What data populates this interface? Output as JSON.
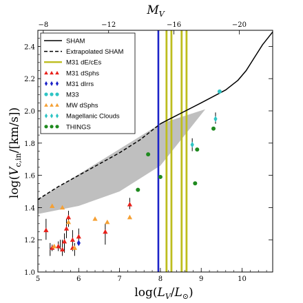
{
  "chart_data": {
    "type": "scatter",
    "xlabel": "log(L_V/L_⊙)",
    "ylabel": "log(V_c,in/[km/s])",
    "top_xlabel": "M_V",
    "xlim": [
      5.0,
      10.75
    ],
    "ylim": [
      1.0,
      2.5
    ],
    "x_ticks": [
      5,
      6,
      7,
      8,
      9,
      10
    ],
    "y_ticks": [
      1.0,
      1.2,
      1.4,
      1.6,
      1.8,
      2.0,
      2.2,
      2.4
    ],
    "top_ticks": [
      -8,
      -12,
      -16,
      -20
    ],
    "top_axis_relation": "M_V = 4.83 - 2.5 * log(L_V/L_sun)",
    "legend": [
      {
        "label": "SHAM",
        "style": "solid-line",
        "color": "#000000"
      },
      {
        "label": "Extrapolated SHAM",
        "style": "dashed-line",
        "color": "#000000"
      },
      {
        "label": "M31 dE/cEs",
        "style": "line",
        "color": "#bdbd1e"
      },
      {
        "label": "M31 dSphs",
        "style": "triangle",
        "color": "#e8201a"
      },
      {
        "label": "M31 dIrrs",
        "style": "diamond",
        "color": "#1c23c8"
      },
      {
        "label": "M33",
        "style": "circle",
        "color": "#2ec4c4"
      },
      {
        "label": "MW dSphs",
        "style": "triangle",
        "color": "#f5a034"
      },
      {
        "label": "Magellanic Clouds",
        "style": "diamond",
        "color": "#2ec4c4"
      },
      {
        "label": "THINGS",
        "style": "circle",
        "color": "#1f8a1f"
      }
    ],
    "sham_curve": {
      "x": [
        8.0,
        8.5,
        9.0,
        9.3,
        9.6,
        9.9,
        10.1,
        10.3,
        10.5,
        10.75
      ],
      "y": [
        1.92,
        1.985,
        2.05,
        2.09,
        2.13,
        2.19,
        2.25,
        2.33,
        2.41,
        2.49
      ]
    },
    "extrapolated_sham": {
      "x": [
        5.0,
        5.5,
        6.0,
        6.5,
        7.0,
        7.5,
        8.0
      ],
      "y": [
        1.45,
        1.53,
        1.6,
        1.67,
        1.74,
        1.82,
        1.92
      ]
    },
    "scatter_band": {
      "upper": {
        "x": [
          5.0,
          8.0,
          9.1
        ],
        "y": [
          1.45,
          1.92,
          2.01
        ]
      },
      "lower": {
        "x": [
          5.0,
          6.0,
          7.0,
          8.0,
          9.1
        ],
        "y": [
          1.36,
          1.41,
          1.5,
          1.66,
          2.01
        ]
      }
    },
    "vertical_lines": [
      {
        "group": "M31 dIrrs",
        "x": 7.95
      },
      {
        "group": "M31 dE/cEs",
        "x": 8.15
      },
      {
        "group": "M31 dE/cEs",
        "x": 8.27
      },
      {
        "group": "M31 dE/cEs",
        "x": 8.52
      },
      {
        "group": "M31 dE/cEs",
        "x": 8.64
      }
    ],
    "series": [
      {
        "name": "M31 dSphs",
        "marker": "triangle",
        "color": "#e8201a",
        "points": [
          {
            "x": 5.2,
            "y": 1.26,
            "err": [
              1.2,
              1.33
            ]
          },
          {
            "x": 5.35,
            "y": 1.15,
            "err": [
              1.13,
              1.17
            ]
          },
          {
            "x": 5.5,
            "y": 1.16,
            "err": [
              1.13,
              1.19
            ]
          },
          {
            "x": 5.6,
            "y": 1.14,
            "err": [
              1.1,
              1.2
            ]
          },
          {
            "x": 5.65,
            "y": 1.19,
            "err": [
              1.12,
              1.24
            ]
          },
          {
            "x": 5.7,
            "y": 1.27,
            "err": [
              1.21,
              1.33
            ]
          },
          {
            "x": 5.75,
            "y": 1.34,
            "err": [
              1.28,
              1.38
            ]
          },
          {
            "x": 5.85,
            "y": 1.15,
            "err": [
              1.13,
              1.17
            ]
          },
          {
            "x": 5.85,
            "y": 1.2,
            "err": [
              1.16,
              1.26
            ]
          },
          {
            "x": 6.0,
            "y": 1.22,
            "err": [
              1.18,
              1.27
            ]
          },
          {
            "x": 6.65,
            "y": 1.25,
            "err": [
              1.17,
              1.3
            ]
          },
          {
            "x": 7.25,
            "y": 1.42,
            "err": [
              1.39,
              1.46
            ]
          }
        ]
      },
      {
        "name": "M31 dIrrs",
        "marker": "diamond",
        "color": "#1c23c8",
        "points": [
          {
            "x": 6.0,
            "y": 1.18
          }
        ]
      },
      {
        "name": "M33",
        "marker": "circle",
        "color": "#2ec4c4",
        "points": [
          {
            "x": 9.45,
            "y": 2.12
          }
        ]
      },
      {
        "name": "MW dSphs",
        "marker": "triangle",
        "color": "#f5a034",
        "points": [
          {
            "x": 5.35,
            "y": 1.41
          },
          {
            "x": 5.4,
            "y": 1.16
          },
          {
            "x": 5.6,
            "y": 1.4
          },
          {
            "x": 5.75,
            "y": 1.31
          },
          {
            "x": 5.9,
            "y": 1.15
          },
          {
            "x": 6.4,
            "y": 1.33
          },
          {
            "x": 6.7,
            "y": 1.31
          },
          {
            "x": 7.25,
            "y": 1.34
          }
        ]
      },
      {
        "name": "Magellanic Clouds",
        "marker": "diamond",
        "color": "#2ec4c4",
        "points": [
          {
            "x": 8.78,
            "y": 1.79,
            "err": [
              1.75,
              1.83
            ]
          },
          {
            "x": 9.35,
            "y": 1.95,
            "err": [
              1.92,
              1.99
            ]
          }
        ]
      },
      {
        "name": "THINGS",
        "marker": "circle",
        "color": "#1f8a1f",
        "points": [
          {
            "x": 7.45,
            "y": 1.51
          },
          {
            "x": 7.7,
            "y": 1.73
          },
          {
            "x": 8.0,
            "y": 1.59
          },
          {
            "x": 8.85,
            "y": 1.55
          },
          {
            "x": 8.9,
            "y": 1.76
          },
          {
            "x": 9.3,
            "y": 1.89
          }
        ]
      }
    ],
    "extra_error_bars": [
      {
        "x": 5.3,
        "y": [
          1.1,
          1.18
        ]
      },
      {
        "x": 5.55,
        "y": [
          1.14,
          1.2
        ]
      },
      {
        "x": 5.65,
        "y": [
          1.13,
          1.22
        ]
      },
      {
        "x": 5.9,
        "y": [
          1.1,
          1.18
        ]
      }
    ]
  }
}
